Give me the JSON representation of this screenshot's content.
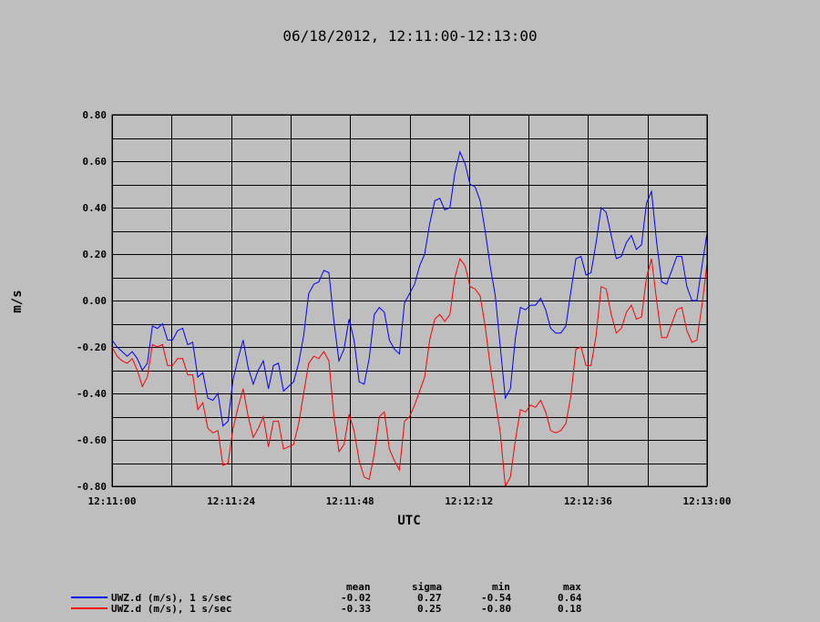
{
  "chart_data": {
    "type": "line",
    "title": "06/18/2012, 12:11:00-12:13:00",
    "xlabel": "UTC",
    "ylabel": "m/s",
    "xlim": [
      0,
      120
    ],
    "ylim": [
      -0.8,
      0.8
    ],
    "x_ticks": [
      {
        "value": 0,
        "label": "12:11:00"
      },
      {
        "value": 24,
        "label": "12:11:24"
      },
      {
        "value": 48,
        "label": "12:11:48"
      },
      {
        "value": 72,
        "label": "12:12:12"
      },
      {
        "value": 96,
        "label": "12:12:36"
      },
      {
        "value": 120,
        "label": "12:13:00"
      }
    ],
    "x_grid": [
      0,
      12,
      24,
      36,
      48,
      60,
      72,
      84,
      96,
      108,
      120
    ],
    "y_ticks": [
      -0.8,
      -0.6,
      -0.4,
      -0.2,
      0.0,
      0.2,
      0.4,
      0.6,
      0.8
    ],
    "y_tick_labels": [
      "-0.80",
      "-0.60",
      "-0.40",
      "-0.20",
      "0.00",
      "0.20",
      "0.40",
      "0.60",
      "0.80"
    ],
    "y_grid_step": 0.1,
    "grid": true,
    "series": [
      {
        "name": "UWZ.d (m/s), 1 s/sec",
        "color": "#0000ff",
        "values": [
          -0.17,
          -0.2,
          -0.22,
          -0.24,
          -0.22,
          -0.25,
          -0.3,
          -0.27,
          -0.11,
          -0.12,
          -0.1,
          -0.17,
          -0.17,
          -0.13,
          -0.12,
          -0.19,
          -0.18,
          -0.33,
          -0.31,
          -0.42,
          -0.43,
          -0.4,
          -0.54,
          -0.52,
          -0.34,
          -0.25,
          -0.17,
          -0.29,
          -0.36,
          -0.3,
          -0.26,
          -0.38,
          -0.28,
          -0.27,
          -0.39,
          -0.37,
          -0.35,
          -0.27,
          -0.15,
          0.03,
          0.07,
          0.08,
          0.13,
          0.12,
          -0.09,
          -0.26,
          -0.21,
          -0.08,
          -0.17,
          -0.35,
          -0.36,
          -0.25,
          -0.06,
          -0.03,
          -0.05,
          -0.17,
          -0.21,
          -0.23,
          -0.01,
          0.03,
          0.07,
          0.15,
          0.2,
          0.33,
          0.43,
          0.44,
          0.39,
          0.4,
          0.55,
          0.64,
          0.59,
          0.5,
          0.49,
          0.43,
          0.3,
          0.15,
          0.02,
          -0.2,
          -0.42,
          -0.38,
          -0.16,
          -0.03,
          -0.04,
          -0.02,
          -0.02,
          0.01,
          -0.04,
          -0.12,
          -0.14,
          -0.14,
          -0.11,
          0.04,
          0.18,
          0.19,
          0.11,
          0.12,
          0.25,
          0.4,
          0.38,
          0.28,
          0.18,
          0.19,
          0.25,
          0.28,
          0.22,
          0.24,
          0.42,
          0.47,
          0.25,
          0.08,
          0.07,
          0.13,
          0.19,
          0.19,
          0.06,
          0.0,
          0.0,
          0.15,
          0.29
        ]
      },
      {
        "name": "UWZ.d (m/s), 1 s/sec",
        "color": "#ff0000",
        "values": [
          -0.2,
          -0.24,
          -0.26,
          -0.27,
          -0.25,
          -0.3,
          -0.37,
          -0.33,
          -0.19,
          -0.2,
          -0.19,
          -0.28,
          -0.28,
          -0.25,
          -0.25,
          -0.32,
          -0.32,
          -0.47,
          -0.44,
          -0.55,
          -0.57,
          -0.56,
          -0.71,
          -0.7,
          -0.55,
          -0.46,
          -0.38,
          -0.5,
          -0.59,
          -0.55,
          -0.5,
          -0.63,
          -0.52,
          -0.52,
          -0.64,
          -0.63,
          -0.62,
          -0.53,
          -0.4,
          -0.27,
          -0.24,
          -0.25,
          -0.22,
          -0.26,
          -0.5,
          -0.65,
          -0.62,
          -0.49,
          -0.56,
          -0.69,
          -0.76,
          -0.77,
          -0.66,
          -0.5,
          -0.48,
          -0.64,
          -0.69,
          -0.73,
          -0.52,
          -0.5,
          -0.45,
          -0.39,
          -0.33,
          -0.17,
          -0.08,
          -0.06,
          -0.09,
          -0.06,
          0.1,
          0.18,
          0.15,
          0.06,
          0.05,
          0.02,
          -0.11,
          -0.28,
          -0.43,
          -0.57,
          -0.8,
          -0.76,
          -0.6,
          -0.47,
          -0.48,
          -0.45,
          -0.46,
          -0.43,
          -0.48,
          -0.56,
          -0.57,
          -0.56,
          -0.53,
          -0.41,
          -0.21,
          -0.2,
          -0.28,
          -0.28,
          -0.15,
          0.06,
          0.05,
          -0.06,
          -0.14,
          -0.12,
          -0.05,
          -0.02,
          -0.08,
          -0.07,
          0.1,
          0.18,
          0.0,
          -0.16,
          -0.16,
          -0.1,
          -0.04,
          -0.03,
          -0.13,
          -0.18,
          -0.17,
          -0.02,
          0.16
        ]
      }
    ],
    "stats": {
      "headers": [
        "mean",
        "sigma",
        "min",
        "max"
      ],
      "rows": [
        {
          "label": "UWZ.d (m/s), 1 s/sec",
          "color": "#0000ff",
          "mean": "-0.02",
          "sigma": "0.27",
          "min": "-0.54",
          "max": "0.64"
        },
        {
          "label": "UWZ.d (m/s), 1 s/sec",
          "color": "#ff0000",
          "mean": "-0.33",
          "sigma": "0.25",
          "min": "-0.80",
          "max": "0.18"
        }
      ]
    }
  }
}
